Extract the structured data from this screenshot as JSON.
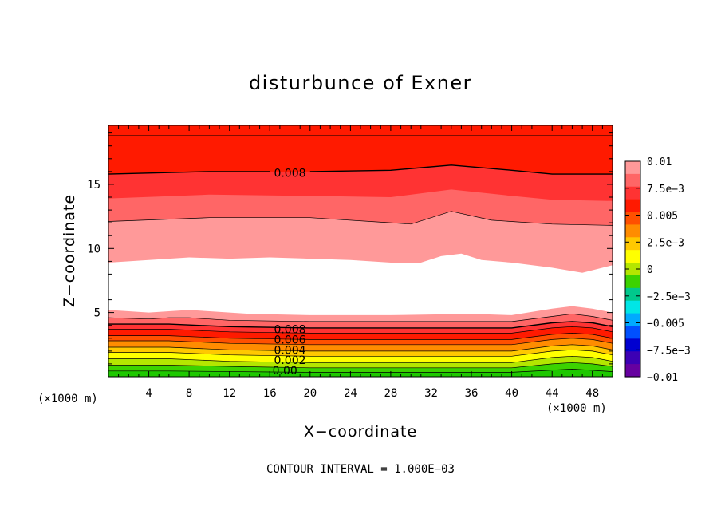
{
  "chart_data": {
    "type": "heatmap",
    "title": "disturbunce of Exner",
    "xlabel": "X−coordinate",
    "ylabel": "Z−coordinate",
    "x_unit_label": "(×1000 m)",
    "y_unit_label": "(×1000 m)",
    "footnote": "CONTOUR INTERVAL = 1.000E−03",
    "xlim": [
      0,
      50
    ],
    "ylim": [
      0,
      19.6
    ],
    "x_ticks": [
      4,
      8,
      12,
      16,
      20,
      24,
      28,
      32,
      36,
      40,
      44,
      48
    ],
    "y_ticks": [
      5,
      10,
      15
    ],
    "colorbar": {
      "range": [
        -0.01,
        0.01
      ],
      "tick_values": [
        0.01,
        0.0075,
        0.005,
        0.0025,
        0,
        -0.0025,
        -0.005,
        -0.0075,
        -0.01
      ],
      "tick_labels": [
        "0.01",
        "7.5e−3",
        "0.005",
        "2.5e−3",
        "0",
        "−2.5e−3",
        "−0.005",
        "−7.5e−3",
        "−0.01"
      ],
      "colors": [
        "#ff9999",
        "#ff6666",
        "#ff3333",
        "#ff1a00",
        "#ff5000",
        "#ff8c00",
        "#ffc800",
        "#ffff00",
        "#b4e600",
        "#3cd200",
        "#00c88c",
        "#00e6e6",
        "#00aaff",
        "#0050ff",
        "#0000d0",
        "#3c00b4",
        "#6600a0"
      ]
    },
    "contour_labels": [
      {
        "text": "0.008",
        "x": 18,
        "z": 15.9
      },
      {
        "text": "0.008",
        "x": 18,
        "z": 3.7
      },
      {
        "text": "0.006",
        "x": 18,
        "z": 2.9
      },
      {
        "text": "0.004",
        "x": 18,
        "z": 2.1
      },
      {
        "text": "0.002",
        "x": 18,
        "z": 1.3
      },
      {
        "text": "0.00",
        "x": 17.5,
        "z": 0.5
      }
    ],
    "layers": [
      {
        "color": "#ff1a00",
        "z_at_x": [
          [
            0,
            19.6
          ],
          [
            50,
            19.6
          ]
        ]
      },
      {
        "color": "#ff3333",
        "z_at_x": [
          [
            0,
            15.8
          ],
          [
            10,
            16.0
          ],
          [
            20,
            16.0
          ],
          [
            28,
            16.1
          ],
          [
            34,
            16.5
          ],
          [
            40,
            16.1
          ],
          [
            44,
            15.8
          ],
          [
            50,
            15.8
          ]
        ]
      },
      {
        "color": "#ff6666",
        "z_at_x": [
          [
            0,
            13.9
          ],
          [
            10,
            14.2
          ],
          [
            20,
            14.1
          ],
          [
            28,
            14.0
          ],
          [
            34,
            14.6
          ],
          [
            40,
            14.1
          ],
          [
            44,
            13.8
          ],
          [
            50,
            13.7
          ]
        ]
      },
      {
        "color": "#ff9999",
        "z_at_x": [
          [
            0,
            12.1
          ],
          [
            10,
            12.4
          ],
          [
            20,
            12.4
          ],
          [
            28,
            12.0
          ],
          [
            30,
            11.9
          ],
          [
            34,
            12.9
          ],
          [
            38,
            12.2
          ],
          [
            44,
            11.9
          ],
          [
            50,
            11.8
          ]
        ]
      },
      {
        "color": "#ffffff",
        "z_at_x": [
          [
            0,
            8.9
          ],
          [
            4,
            9.1
          ],
          [
            8,
            9.3
          ],
          [
            12,
            9.2
          ],
          [
            16,
            9.3
          ],
          [
            20,
            9.2
          ],
          [
            24,
            9.1
          ],
          [
            28,
            8.9
          ],
          [
            31,
            8.9
          ],
          [
            33,
            9.4
          ],
          [
            35,
            9.6
          ],
          [
            37,
            9.1
          ],
          [
            40,
            8.9
          ],
          [
            44,
            8.5
          ],
          [
            47,
            8.1
          ],
          [
            50,
            8.7
          ]
        ]
      },
      {
        "color": "#ff9999",
        "z_at_x": [
          [
            0,
            5.2
          ],
          [
            4,
            5.0
          ],
          [
            6,
            5.1
          ],
          [
            8,
            5.2
          ],
          [
            10,
            5.1
          ],
          [
            14,
            4.9
          ],
          [
            20,
            4.8
          ],
          [
            28,
            4.8
          ],
          [
            36,
            4.9
          ],
          [
            40,
            4.8
          ],
          [
            44,
            5.3
          ],
          [
            46,
            5.5
          ],
          [
            48,
            5.3
          ],
          [
            50,
            5.0
          ]
        ]
      },
      {
        "color": "#ff6666",
        "z_at_x": [
          [
            0,
            4.6
          ],
          [
            4,
            4.5
          ],
          [
            6,
            4.6
          ],
          [
            8,
            4.6
          ],
          [
            12,
            4.4
          ],
          [
            20,
            4.3
          ],
          [
            28,
            4.3
          ],
          [
            36,
            4.3
          ],
          [
            40,
            4.3
          ],
          [
            44,
            4.7
          ],
          [
            46,
            4.9
          ],
          [
            48,
            4.7
          ],
          [
            50,
            4.4
          ]
        ]
      },
      {
        "color": "#ff3333",
        "z_at_x": [
          [
            0,
            4.1
          ],
          [
            6,
            4.1
          ],
          [
            12,
            3.9
          ],
          [
            20,
            3.8
          ],
          [
            28,
            3.8
          ],
          [
            36,
            3.8
          ],
          [
            40,
            3.8
          ],
          [
            44,
            4.2
          ],
          [
            46,
            4.3
          ],
          [
            48,
            4.2
          ],
          [
            50,
            3.9
          ]
        ]
      },
      {
        "color": "#ff1a00",
        "z_at_x": [
          [
            0,
            3.7
          ],
          [
            6,
            3.7
          ],
          [
            12,
            3.5
          ],
          [
            20,
            3.4
          ],
          [
            28,
            3.4
          ],
          [
            40,
            3.4
          ],
          [
            44,
            3.8
          ],
          [
            46,
            3.9
          ],
          [
            48,
            3.8
          ],
          [
            50,
            3.5
          ]
        ]
      },
      {
        "color": "#ff5000",
        "z_at_x": [
          [
            0,
            3.2
          ],
          [
            6,
            3.2
          ],
          [
            12,
            3.0
          ],
          [
            20,
            2.9
          ],
          [
            28,
            2.9
          ],
          [
            40,
            2.9
          ],
          [
            44,
            3.3
          ],
          [
            46,
            3.4
          ],
          [
            48,
            3.3
          ],
          [
            50,
            3.0
          ]
        ]
      },
      {
        "color": "#ff8c00",
        "z_at_x": [
          [
            0,
            2.8
          ],
          [
            6,
            2.8
          ],
          [
            12,
            2.6
          ],
          [
            20,
            2.5
          ],
          [
            28,
            2.5
          ],
          [
            40,
            2.5
          ],
          [
            44,
            2.9
          ],
          [
            46,
            3.0
          ],
          [
            48,
            2.9
          ],
          [
            50,
            2.6
          ]
        ]
      },
      {
        "color": "#ffc800",
        "z_at_x": [
          [
            0,
            2.3
          ],
          [
            6,
            2.3
          ],
          [
            12,
            2.1
          ],
          [
            20,
            2.0
          ],
          [
            28,
            2.0
          ],
          [
            40,
            2.0
          ],
          [
            44,
            2.4
          ],
          [
            46,
            2.5
          ],
          [
            48,
            2.4
          ],
          [
            50,
            2.1
          ]
        ]
      },
      {
        "color": "#ffff00",
        "z_at_x": [
          [
            0,
            1.9
          ],
          [
            6,
            1.9
          ],
          [
            12,
            1.7
          ],
          [
            20,
            1.6
          ],
          [
            28,
            1.6
          ],
          [
            40,
            1.6
          ],
          [
            44,
            2.0
          ],
          [
            46,
            2.1
          ],
          [
            48,
            2.0
          ],
          [
            50,
            1.7
          ]
        ]
      },
      {
        "color": "#b4e600",
        "z_at_x": [
          [
            0,
            1.4
          ],
          [
            6,
            1.4
          ],
          [
            12,
            1.2
          ],
          [
            20,
            1.1
          ],
          [
            28,
            1.1
          ],
          [
            40,
            1.1
          ],
          [
            44,
            1.5
          ],
          [
            46,
            1.6
          ],
          [
            48,
            1.5
          ],
          [
            50,
            1.2
          ]
        ]
      },
      {
        "color": "#3cd200",
        "z_at_x": [
          [
            0,
            0.9
          ],
          [
            6,
            0.9
          ],
          [
            12,
            0.8
          ],
          [
            20,
            0.7
          ],
          [
            28,
            0.7
          ],
          [
            40,
            0.7
          ],
          [
            44,
            1.0
          ],
          [
            46,
            1.1
          ],
          [
            48,
            1.0
          ],
          [
            50,
            0.8
          ]
        ]
      },
      {
        "color": "#1ec800",
        "z_at_x": [
          [
            0,
            0.45
          ],
          [
            6,
            0.45
          ],
          [
            20,
            0.35
          ],
          [
            40,
            0.35
          ],
          [
            46,
            0.6
          ],
          [
            50,
            0.4
          ]
        ]
      }
    ],
    "contours": [
      {
        "bold": false,
        "z_at_x": [
          [
            0,
            18.8
          ],
          [
            50,
            18.8
          ]
        ]
      },
      {
        "bold": true,
        "z_at_x": [
          [
            0,
            15.8
          ],
          [
            10,
            16.0
          ],
          [
            16,
            16.0
          ]
        ],
        "z_at_x_2": [
          [
            20,
            16.0
          ],
          [
            28,
            16.1
          ],
          [
            34,
            16.5
          ],
          [
            40,
            16.1
          ],
          [
            44,
            15.8
          ],
          [
            50,
            15.8
          ]
        ]
      },
      {
        "bold": false,
        "z_at_x": [
          [
            0,
            12.1
          ],
          [
            10,
            12.4
          ],
          [
            20,
            12.4
          ],
          [
            28,
            12.0
          ],
          [
            30,
            11.9
          ],
          [
            34,
            12.9
          ],
          [
            38,
            12.2
          ],
          [
            44,
            11.9
          ],
          [
            50,
            11.8
          ]
        ]
      },
      {
        "bold": false,
        "z_at_x": [
          [
            0,
            4.6
          ],
          [
            4,
            4.5
          ],
          [
            6,
            4.6
          ],
          [
            8,
            4.6
          ],
          [
            12,
            4.4
          ],
          [
            20,
            4.3
          ],
          [
            28,
            4.3
          ],
          [
            36,
            4.3
          ],
          [
            40,
            4.3
          ],
          [
            44,
            4.7
          ],
          [
            46,
            4.9
          ],
          [
            48,
            4.7
          ],
          [
            50,
            4.4
          ]
        ]
      },
      {
        "bold": true,
        "z_at_x": [
          [
            0,
            4.1
          ],
          [
            6,
            4.1
          ],
          [
            12,
            3.9
          ],
          [
            20,
            3.8
          ],
          [
            28,
            3.8
          ],
          [
            36,
            3.8
          ],
          [
            40,
            3.8
          ],
          [
            44,
            4.2
          ],
          [
            46,
            4.3
          ],
          [
            48,
            4.2
          ],
          [
            50,
            3.9
          ]
        ]
      },
      {
        "bold": false,
        "z_at_x": [
          [
            0,
            3.7
          ],
          [
            6,
            3.7
          ],
          [
            12,
            3.5
          ],
          [
            20,
            3.4
          ],
          [
            28,
            3.4
          ],
          [
            40,
            3.4
          ],
          [
            44,
            3.8
          ],
          [
            46,
            3.9
          ],
          [
            48,
            3.8
          ],
          [
            50,
            3.5
          ]
        ]
      },
      {
        "bold": false,
        "z_at_x": [
          [
            0,
            3.2
          ],
          [
            6,
            3.2
          ],
          [
            12,
            3.0
          ],
          [
            20,
            2.9
          ],
          [
            28,
            2.9
          ],
          [
            40,
            2.9
          ],
          [
            44,
            3.3
          ],
          [
            46,
            3.4
          ],
          [
            48,
            3.3
          ],
          [
            50,
            3.0
          ]
        ]
      },
      {
        "bold": false,
        "z_at_x": [
          [
            0,
            2.8
          ],
          [
            6,
            2.8
          ],
          [
            12,
            2.6
          ],
          [
            20,
            2.5
          ],
          [
            28,
            2.5
          ],
          [
            40,
            2.5
          ],
          [
            44,
            2.9
          ],
          [
            46,
            3.0
          ],
          [
            48,
            2.9
          ],
          [
            50,
            2.6
          ]
        ]
      },
      {
        "bold": false,
        "z_at_x": [
          [
            0,
            2.3
          ],
          [
            6,
            2.3
          ],
          [
            12,
            2.1
          ],
          [
            20,
            2.0
          ],
          [
            28,
            2.0
          ],
          [
            40,
            2.0
          ],
          [
            44,
            2.4
          ],
          [
            46,
            2.5
          ],
          [
            48,
            2.4
          ],
          [
            50,
            2.1
          ]
        ]
      },
      {
        "bold": false,
        "z_at_x": [
          [
            0,
            1.9
          ],
          [
            6,
            1.9
          ],
          [
            12,
            1.7
          ],
          [
            20,
            1.6
          ],
          [
            28,
            1.6
          ],
          [
            40,
            1.6
          ],
          [
            44,
            2.0
          ],
          [
            46,
            2.1
          ],
          [
            48,
            2.0
          ],
          [
            50,
            1.7
          ]
        ]
      },
      {
        "bold": false,
        "z_at_x": [
          [
            0,
            1.4
          ],
          [
            6,
            1.4
          ],
          [
            12,
            1.2
          ],
          [
            20,
            1.1
          ],
          [
            28,
            1.1
          ],
          [
            40,
            1.1
          ],
          [
            44,
            1.5
          ],
          [
            46,
            1.6
          ],
          [
            48,
            1.5
          ],
          [
            50,
            1.2
          ]
        ]
      },
      {
        "bold": false,
        "z_at_x": [
          [
            0,
            0.9
          ],
          [
            6,
            0.9
          ],
          [
            12,
            0.8
          ],
          [
            20,
            0.7
          ],
          [
            28,
            0.7
          ],
          [
            40,
            0.7
          ],
          [
            44,
            1.0
          ],
          [
            46,
            1.1
          ],
          [
            48,
            1.0
          ],
          [
            50,
            0.8
          ]
        ]
      },
      {
        "bold": false,
        "z_at_x": [
          [
            0,
            0.45
          ],
          [
            6,
            0.45
          ],
          [
            20,
            0.35
          ],
          [
            40,
            0.35
          ],
          [
            46,
            0.6
          ],
          [
            50,
            0.4
          ]
        ]
      }
    ]
  }
}
